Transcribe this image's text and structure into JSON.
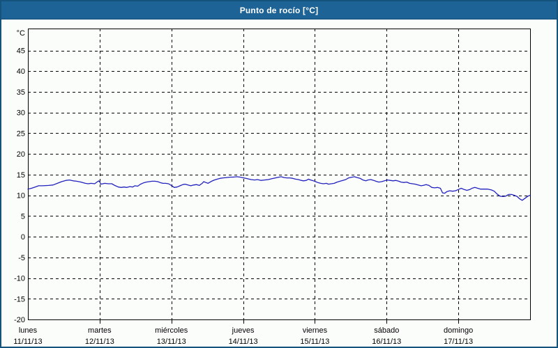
{
  "window": {
    "title": "Punto de rocío [°C]"
  },
  "colors": {
    "titlebar_bg": "#1D6396",
    "titlebar_border": "#0E4A74",
    "window_border": "#15537D",
    "background": "#FBFDFB",
    "grid": "#000000",
    "text": "#000000",
    "title_text": "#FFFFFF",
    "series_line": "#2121BE"
  },
  "chart_data": {
    "type": "line",
    "title": "Punto de rocío [°C]",
    "ylabel": "°C",
    "xlabel": "",
    "ylim": [
      -20,
      50.3
    ],
    "y_ticks": [
      45,
      40,
      35,
      30,
      25,
      20,
      15,
      10,
      5,
      0,
      -5,
      -10,
      -15,
      -20
    ],
    "grid": "dashed",
    "legend_position": "none",
    "x_axis": {
      "span_days": 7,
      "days": [
        {
          "name": "lunes",
          "date": "11/11/13"
        },
        {
          "name": "martes",
          "date": "12/11/13"
        },
        {
          "name": "miércoles",
          "date": "13/11/13"
        },
        {
          "name": "jueves",
          "date": "14/11/13"
        },
        {
          "name": "viernes",
          "date": "15/11/13"
        },
        {
          "name": "sábado",
          "date": "16/11/13"
        },
        {
          "name": "domingo",
          "date": "17/11/13"
        }
      ]
    },
    "series": [
      {
        "name": "Punto de rocío",
        "unit": "°C",
        "color": "#2121BE",
        "points": [
          [
            0,
            11.5
          ],
          [
            0.05,
            11.7
          ],
          [
            0.1,
            12.0
          ],
          [
            0.15,
            12.3
          ],
          [
            0.21,
            12.3
          ],
          [
            0.29,
            12.4
          ],
          [
            0.35,
            12.5
          ],
          [
            0.41,
            12.9
          ],
          [
            0.47,
            13.3
          ],
          [
            0.53,
            13.6
          ],
          [
            0.58,
            13.7
          ],
          [
            0.63,
            13.5
          ],
          [
            0.68,
            13.4
          ],
          [
            0.74,
            13.2
          ],
          [
            0.8,
            12.9
          ],
          [
            0.84,
            12.8
          ],
          [
            0.88,
            12.9
          ],
          [
            0.93,
            12.8
          ],
          [
            0.97,
            13.3
          ],
          [
            0.99,
            13.5
          ],
          [
            1.02,
            12.7
          ],
          [
            1.07,
            12.9
          ],
          [
            1.12,
            12.8
          ],
          [
            1.17,
            12.8
          ],
          [
            1.21,
            12.4
          ],
          [
            1.26,
            12.0
          ],
          [
            1.3,
            11.9
          ],
          [
            1.34,
            12.0
          ],
          [
            1.38,
            11.9
          ],
          [
            1.42,
            12.1
          ],
          [
            1.46,
            12.0
          ],
          [
            1.49,
            12.3
          ],
          [
            1.53,
            12.2
          ],
          [
            1.57,
            12.7
          ],
          [
            1.61,
            13.0
          ],
          [
            1.65,
            13.2
          ],
          [
            1.69,
            13.3
          ],
          [
            1.73,
            13.4
          ],
          [
            1.77,
            13.4
          ],
          [
            1.81,
            13.3
          ],
          [
            1.84,
            13.1
          ],
          [
            1.88,
            12.9
          ],
          [
            1.92,
            12.9
          ],
          [
            1.96,
            12.8
          ],
          [
            2.0,
            12.4
          ],
          [
            2.04,
            11.9
          ],
          [
            2.08,
            12.0
          ],
          [
            2.12,
            12.3
          ],
          [
            2.16,
            12.6
          ],
          [
            2.19,
            12.7
          ],
          [
            2.23,
            12.5
          ],
          [
            2.27,
            12.3
          ],
          [
            2.31,
            12.5
          ],
          [
            2.35,
            12.6
          ],
          [
            2.39,
            12.4
          ],
          [
            2.43,
            12.9
          ],
          [
            2.45,
            13.3
          ],
          [
            2.48,
            13.1
          ],
          [
            2.51,
            12.9
          ],
          [
            2.53,
            13.1
          ],
          [
            2.56,
            13.4
          ],
          [
            2.6,
            13.7
          ],
          [
            2.64,
            13.9
          ],
          [
            2.68,
            14.1
          ],
          [
            2.72,
            14.2
          ],
          [
            2.77,
            14.3
          ],
          [
            2.82,
            14.4
          ],
          [
            2.86,
            14.4
          ],
          [
            2.91,
            14.5
          ],
          [
            2.96,
            14.4
          ],
          [
            3.01,
            14.2
          ],
          [
            3.06,
            14.0
          ],
          [
            3.11,
            13.8
          ],
          [
            3.16,
            13.7
          ],
          [
            3.2,
            13.8
          ],
          [
            3.25,
            13.6
          ],
          [
            3.3,
            13.7
          ],
          [
            3.35,
            13.8
          ],
          [
            3.4,
            14.0
          ],
          [
            3.45,
            14.2
          ],
          [
            3.5,
            14.4
          ],
          [
            3.53,
            14.5
          ],
          [
            3.57,
            14.3
          ],
          [
            3.61,
            14.2
          ],
          [
            3.65,
            14.2
          ],
          [
            3.69,
            14.1
          ],
          [
            3.73,
            13.9
          ],
          [
            3.77,
            13.8
          ],
          [
            3.81,
            13.6
          ],
          [
            3.84,
            13.5
          ],
          [
            3.88,
            13.6
          ],
          [
            3.91,
            13.9
          ],
          [
            3.94,
            13.7
          ],
          [
            3.98,
            13.5
          ],
          [
            4.01,
            13.3
          ],
          [
            4.04,
            13.1
          ],
          [
            4.08,
            12.9
          ],
          [
            4.12,
            12.8
          ],
          [
            4.16,
            12.9
          ],
          [
            4.19,
            12.7
          ],
          [
            4.23,
            12.8
          ],
          [
            4.27,
            12.9
          ],
          [
            4.31,
            13.2
          ],
          [
            4.35,
            13.4
          ],
          [
            4.39,
            13.6
          ],
          [
            4.43,
            13.8
          ],
          [
            4.47,
            14.2
          ],
          [
            4.52,
            14.4
          ],
          [
            4.55,
            14.5
          ],
          [
            4.59,
            14.3
          ],
          [
            4.63,
            14.1
          ],
          [
            4.67,
            13.7
          ],
          [
            4.71,
            13.5
          ],
          [
            4.74,
            13.7
          ],
          [
            4.78,
            13.8
          ],
          [
            4.82,
            13.6
          ],
          [
            4.85,
            13.4
          ],
          [
            4.89,
            13.2
          ],
          [
            4.93,
            13.3
          ],
          [
            4.97,
            13.5
          ],
          [
            5.01,
            13.7
          ],
          [
            5.05,
            13.6
          ],
          [
            5.09,
            13.5
          ],
          [
            5.13,
            13.6
          ],
          [
            5.17,
            13.4
          ],
          [
            5.2,
            13.2
          ],
          [
            5.24,
            13.1
          ],
          [
            5.28,
            13.2
          ],
          [
            5.32,
            12.9
          ],
          [
            5.36,
            12.8
          ],
          [
            5.4,
            12.7
          ],
          [
            5.44,
            12.5
          ],
          [
            5.48,
            12.3
          ],
          [
            5.51,
            12.4
          ],
          [
            5.55,
            12.6
          ],
          [
            5.59,
            12.4
          ],
          [
            5.63,
            11.9
          ],
          [
            5.67,
            11.8
          ],
          [
            5.71,
            11.9
          ],
          [
            5.75,
            11.7
          ],
          [
            5.78,
            10.6
          ],
          [
            5.81,
            10.5
          ],
          [
            5.84,
            10.9
          ],
          [
            5.88,
            11.1
          ],
          [
            5.92,
            11.0
          ],
          [
            5.96,
            11.1
          ],
          [
            6.0,
            11.4
          ],
          [
            6.04,
            11.7
          ],
          [
            6.08,
            11.4
          ],
          [
            6.12,
            11.2
          ],
          [
            6.16,
            11.4
          ],
          [
            6.19,
            11.7
          ],
          [
            6.23,
            11.9
          ],
          [
            6.27,
            11.7
          ],
          [
            6.31,
            11.5
          ],
          [
            6.36,
            11.5
          ],
          [
            6.41,
            11.5
          ],
          [
            6.46,
            11.3
          ],
          [
            6.5,
            11.0
          ],
          [
            6.54,
            10.3
          ],
          [
            6.58,
            9.8
          ],
          [
            6.62,
            9.7
          ],
          [
            6.66,
            9.8
          ],
          [
            6.7,
            10.2
          ],
          [
            6.74,
            10.2
          ],
          [
            6.78,
            10.0
          ],
          [
            6.82,
            9.7
          ],
          [
            6.85,
            9.2
          ],
          [
            6.89,
            8.8
          ],
          [
            6.93,
            9.3
          ],
          [
            6.97,
            9.8
          ],
          [
            7.0,
            10.0
          ]
        ]
      }
    ]
  }
}
